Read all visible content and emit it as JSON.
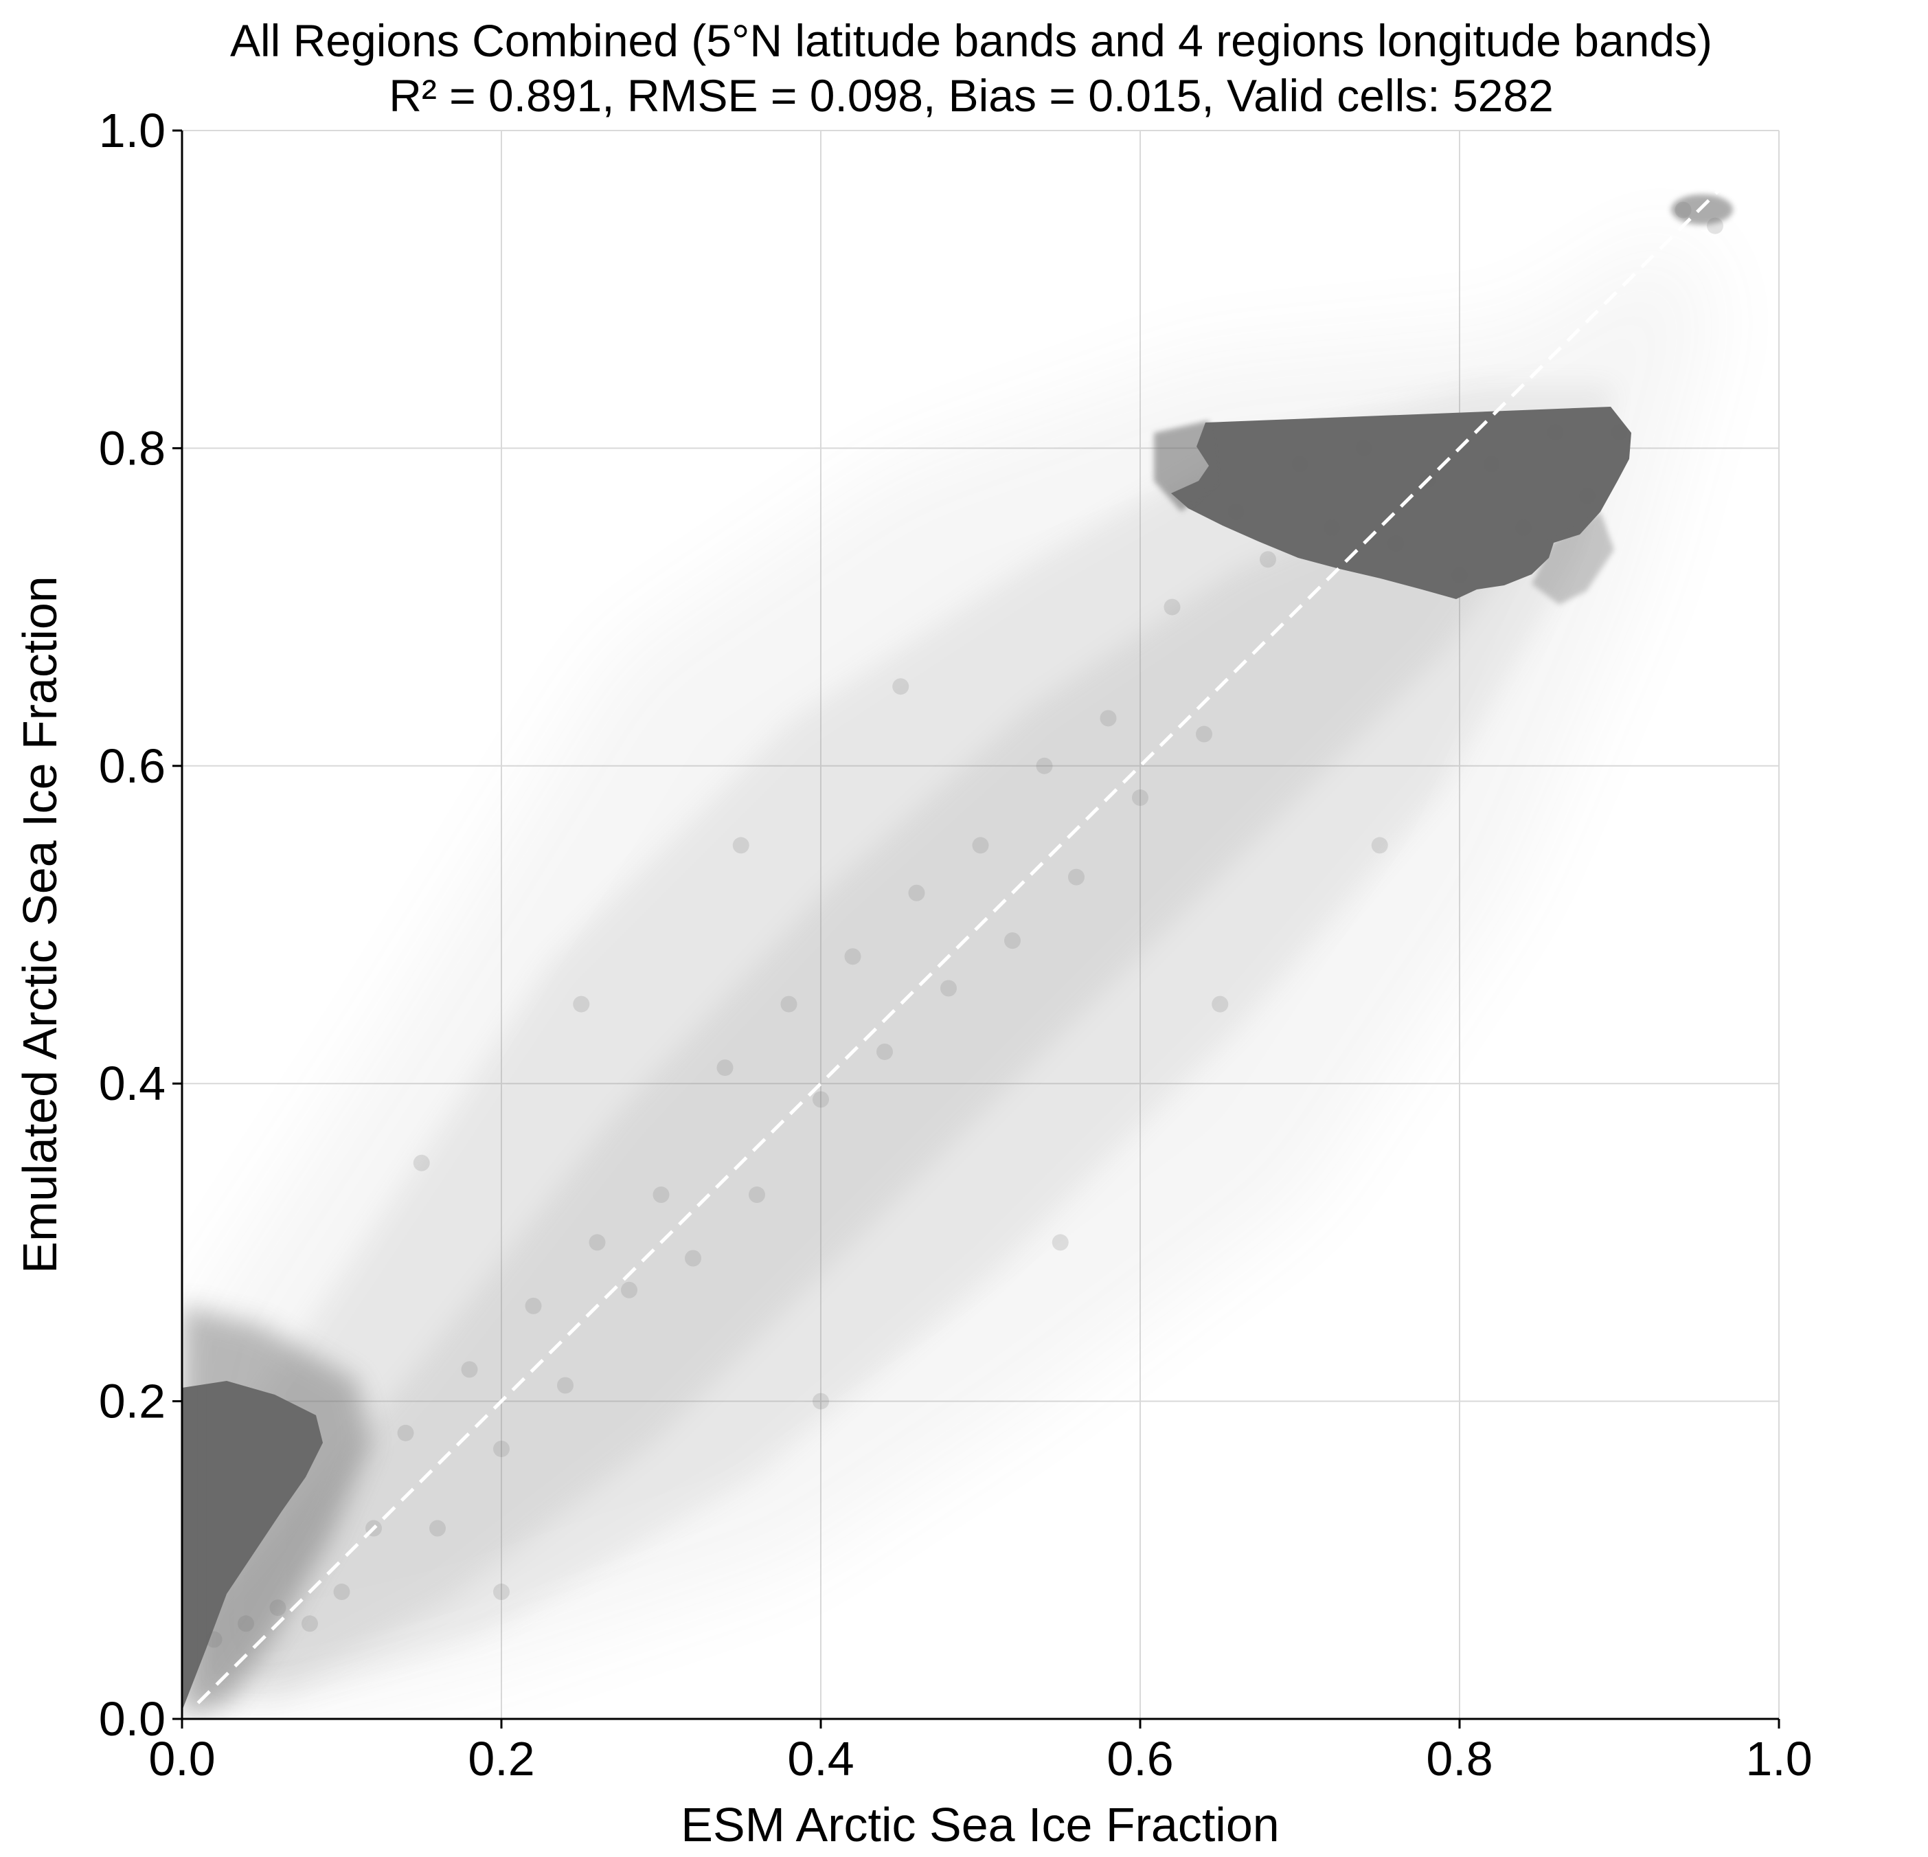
{
  "chart_data": {
    "type": "scatter",
    "title": "All Regions Combined (5°N latitude bands and 4 regions longitude bands)",
    "subtitle": "R² = 0.891, RMSE = 0.098, Bias = 0.015, Valid cells: 5282",
    "xlabel": "ESM Arctic Sea Ice Fraction",
    "ylabel": "Emulated Arctic Sea Ice Fraction",
    "xlim": [
      0.0,
      1.0
    ],
    "ylim": [
      0.0,
      1.0
    ],
    "xticks": [
      "0.0",
      "0.2",
      "0.4",
      "0.6",
      "0.8",
      "1.0"
    ],
    "yticks": [
      "0.0",
      "0.2",
      "0.4",
      "0.6",
      "0.8",
      "1.0"
    ],
    "grid": true,
    "point_color": "#6a6a6a",
    "reference_line": {
      "style": "dashed",
      "color": "#ffffff",
      "x": [
        0.0,
        1.0
      ],
      "y": [
        0.0,
        1.0
      ]
    },
    "points": [
      [
        0.02,
        0.05
      ],
      [
        0.04,
        0.06
      ],
      [
        0.06,
        0.07
      ],
      [
        0.08,
        0.06
      ],
      [
        0.1,
        0.08
      ],
      [
        0.12,
        0.12
      ],
      [
        0.14,
        0.18
      ],
      [
        0.16,
        0.12
      ],
      [
        0.18,
        0.22
      ],
      [
        0.2,
        0.17
      ],
      [
        0.22,
        0.26
      ],
      [
        0.24,
        0.21
      ],
      [
        0.26,
        0.3
      ],
      [
        0.28,
        0.27
      ],
      [
        0.3,
        0.33
      ],
      [
        0.32,
        0.29
      ],
      [
        0.34,
        0.41
      ],
      [
        0.36,
        0.33
      ],
      [
        0.38,
        0.45
      ],
      [
        0.4,
        0.39
      ],
      [
        0.42,
        0.48
      ],
      [
        0.44,
        0.42
      ],
      [
        0.46,
        0.52
      ],
      [
        0.48,
        0.46
      ],
      [
        0.5,
        0.55
      ],
      [
        0.52,
        0.49
      ],
      [
        0.54,
        0.6
      ],
      [
        0.56,
        0.53
      ],
      [
        0.58,
        0.63
      ],
      [
        0.6,
        0.58
      ],
      [
        0.62,
        0.7
      ],
      [
        0.64,
        0.62
      ],
      [
        0.66,
        0.76
      ],
      [
        0.68,
        0.73
      ],
      [
        0.7,
        0.79
      ],
      [
        0.72,
        0.75
      ],
      [
        0.74,
        0.8
      ],
      [
        0.76,
        0.74
      ],
      [
        0.78,
        0.78
      ],
      [
        0.8,
        0.72
      ],
      [
        0.82,
        0.79
      ],
      [
        0.84,
        0.75
      ],
      [
        0.86,
        0.81
      ],
      [
        0.88,
        0.77
      ],
      [
        0.9,
        0.81
      ],
      [
        0.94,
        0.95
      ],
      [
        0.96,
        0.94
      ],
      [
        0.15,
        0.35
      ],
      [
        0.25,
        0.45
      ],
      [
        0.35,
        0.55
      ],
      [
        0.45,
        0.65
      ],
      [
        0.2,
        0.08
      ],
      [
        0.4,
        0.2
      ],
      [
        0.55,
        0.3
      ],
      [
        0.65,
        0.45
      ],
      [
        0.75,
        0.55
      ]
    ]
  }
}
